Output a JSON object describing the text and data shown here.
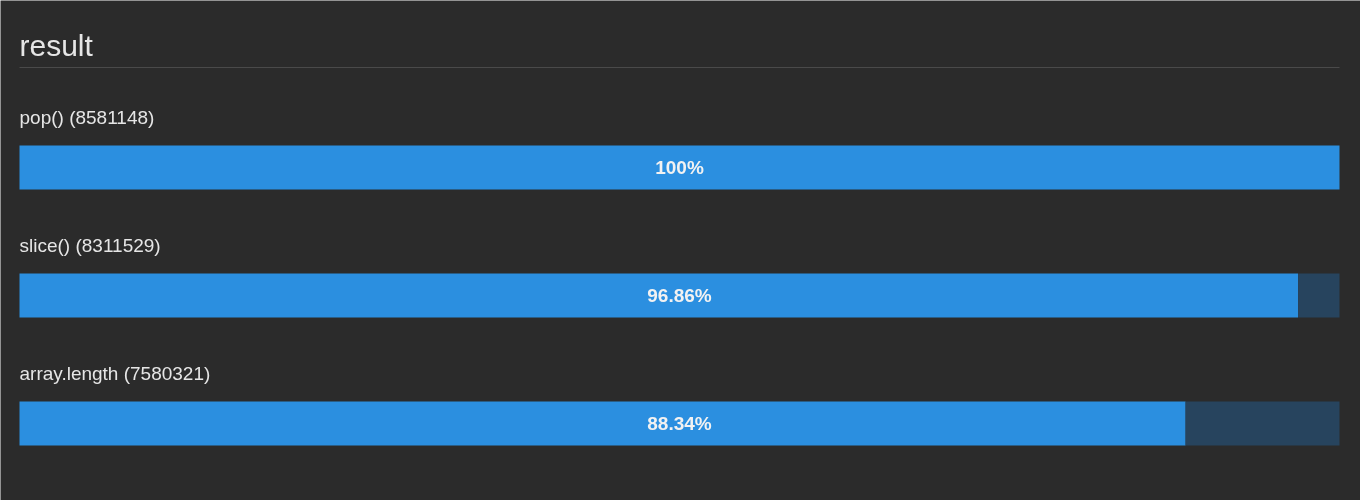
{
  "chart_data": {
    "type": "bar",
    "orientation": "horizontal",
    "stacked": true,
    "title": "result",
    "categories": [
      "pop() (8581148)",
      "slice() (8311529)",
      "array.length (7580321)"
    ],
    "series": [
      {
        "color": "#2b8fe0",
        "values": [
          100,
          96.86,
          88.34
        ],
        "value_labels": [
          "100%",
          "96.86%",
          "88.34%"
        ]
      },
      {
        "color": "#27445e",
        "values": [
          0,
          3.14,
          11.66
        ]
      }
    ],
    "xlim": [
      0,
      100
    ]
  }
}
